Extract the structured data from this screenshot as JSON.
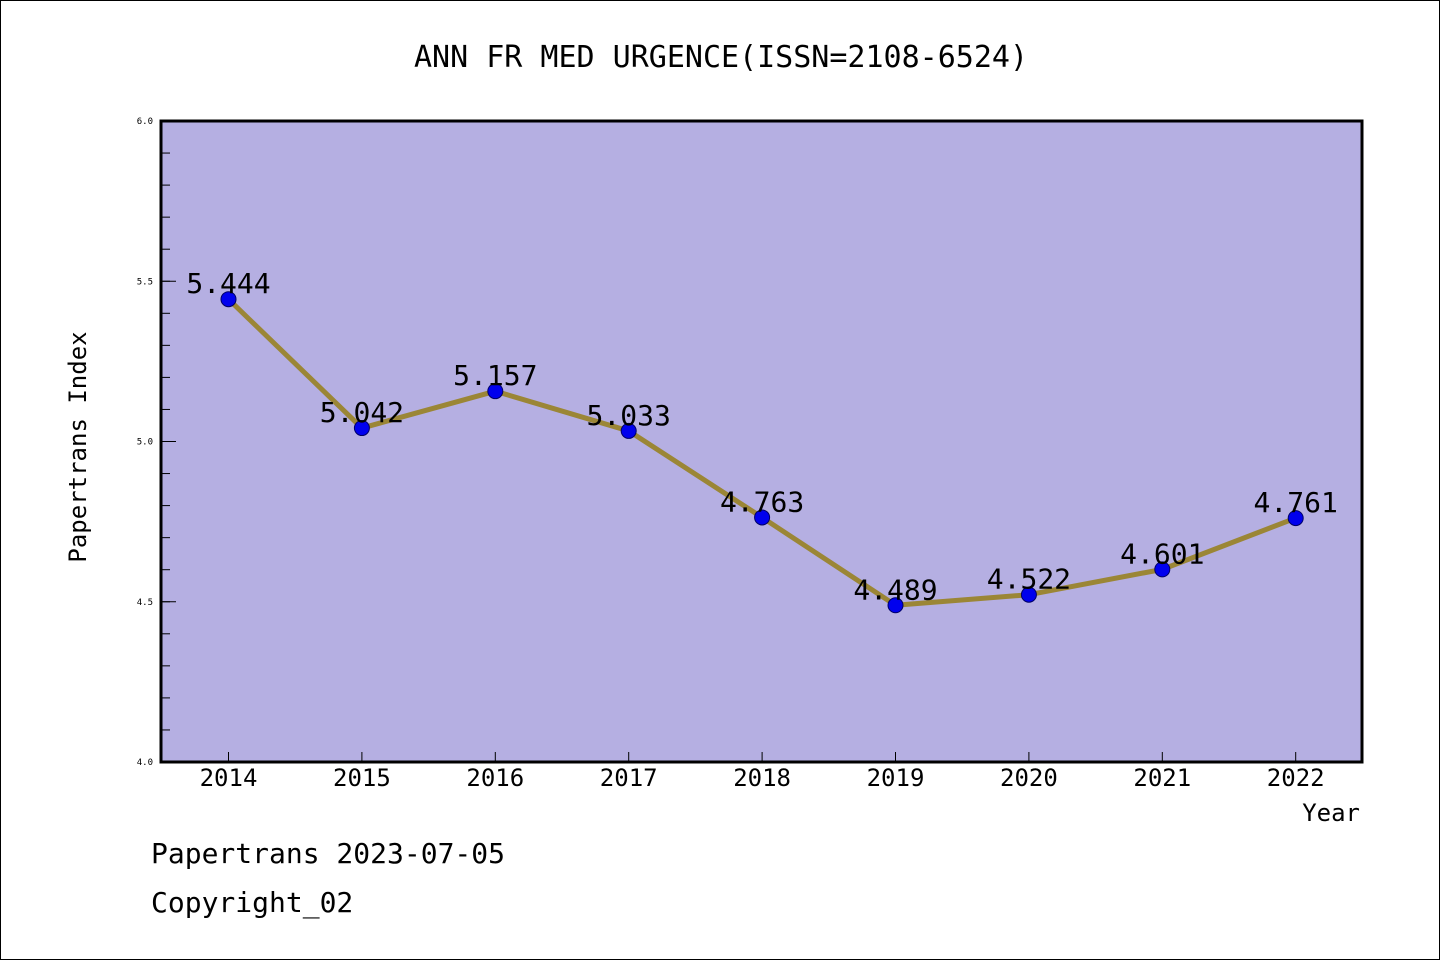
{
  "chart_data": {
    "type": "line",
    "title": "ANN FR MED URGENCE(ISSN=2108-6524)",
    "xlabel": "Year",
    "ylabel": "Papertrans Index",
    "categories": [
      "2014",
      "2015",
      "2016",
      "2017",
      "2018",
      "2019",
      "2020",
      "2021",
      "2022"
    ],
    "values": [
      5.444,
      5.042,
      5.157,
      5.033,
      4.763,
      4.489,
      4.522,
      4.601,
      4.761
    ],
    "data_labels": [
      "5.444",
      "5.042",
      "5.157",
      "5.033",
      "4.763",
      "4.489",
      "4.522",
      "4.601",
      "4.761"
    ],
    "ylim": [
      4.0,
      6.0
    ],
    "yticks": [
      "4.0",
      "4.5",
      "5.0",
      "5.5",
      "6.0"
    ],
    "grid": false,
    "colors": {
      "plot_background": "#b5afe2",
      "line": "#9b8636",
      "marker": "#0000ee",
      "marker_edge": "#000066"
    }
  },
  "footer": {
    "date_line": "Papertrans 2023-07-05",
    "copyright": "Copyright_02"
  }
}
